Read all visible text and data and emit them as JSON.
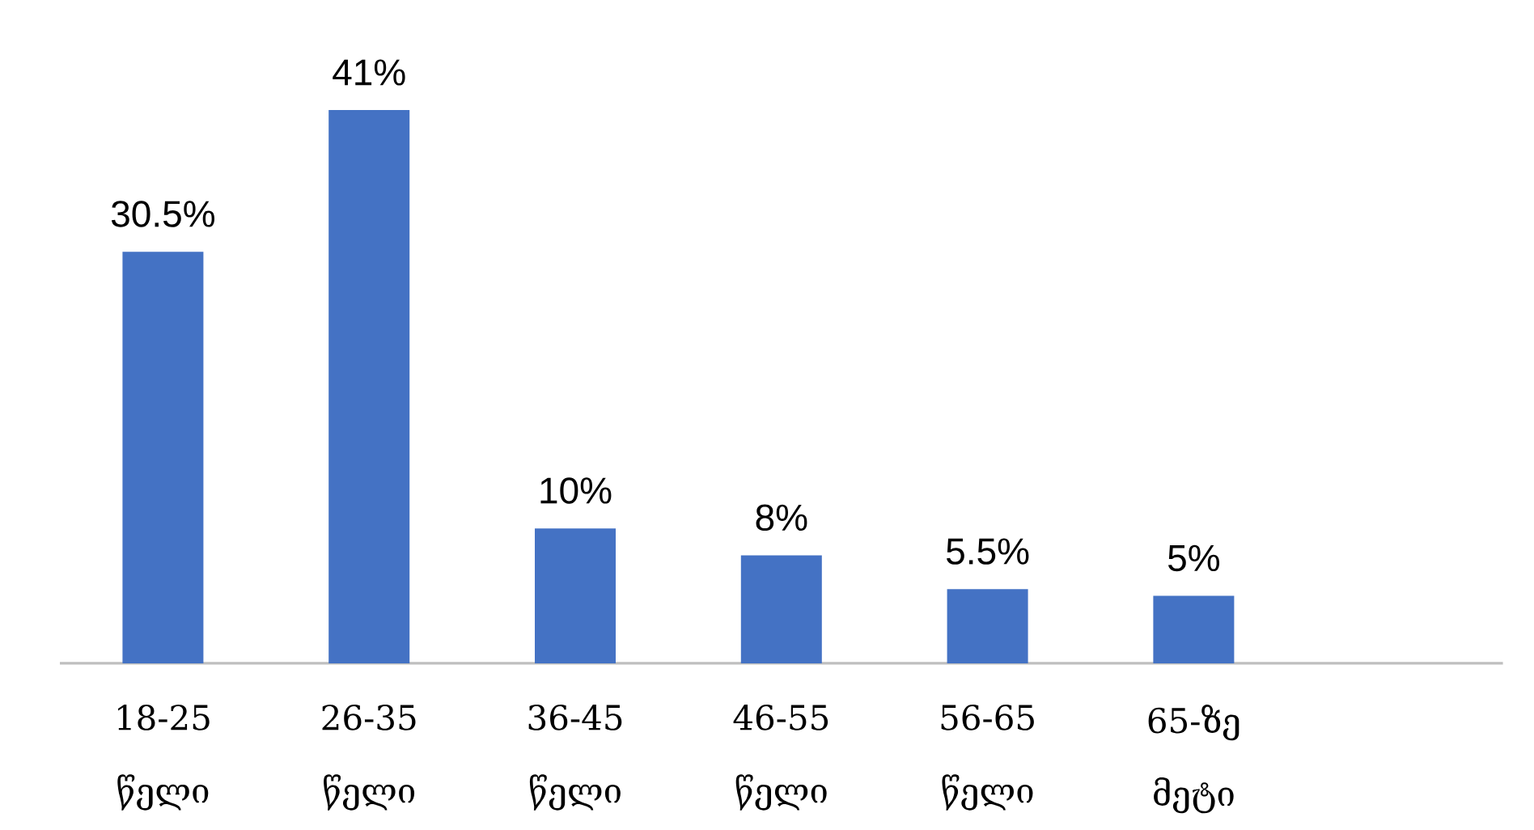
{
  "chart_data": {
    "type": "bar",
    "categories": [
      "18-25 წელი",
      "26-35 წელი",
      "36-45 წელი",
      "46-55 წელი",
      "56-65 წელი",
      "65-ზე მეტი"
    ],
    "values": [
      30.5,
      41,
      10,
      8,
      5.5,
      5
    ],
    "value_labels": [
      "30.5%",
      "41%",
      "10%",
      "8%",
      "5.5%",
      "5%"
    ],
    "color": "#4472c4"
  }
}
